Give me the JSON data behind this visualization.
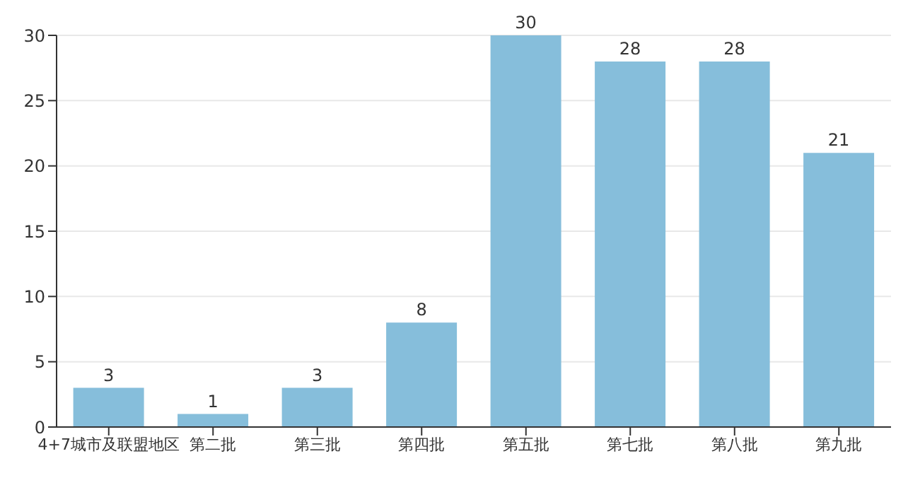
{
  "chart_data": {
    "type": "bar",
    "categories": [
      "4+7城市及联盟地区",
      "第二批",
      "第三批",
      "第四批",
      "第五批",
      "第七批",
      "第八批",
      "第九批"
    ],
    "values": [
      3,
      1,
      3,
      8,
      30,
      28,
      28,
      21
    ],
    "color": "#86bedb",
    "ylim": [
      0,
      30
    ],
    "yticks": [
      0,
      5,
      10,
      15,
      20,
      25,
      30
    ],
    "grid": "y",
    "data_labels": true
  }
}
